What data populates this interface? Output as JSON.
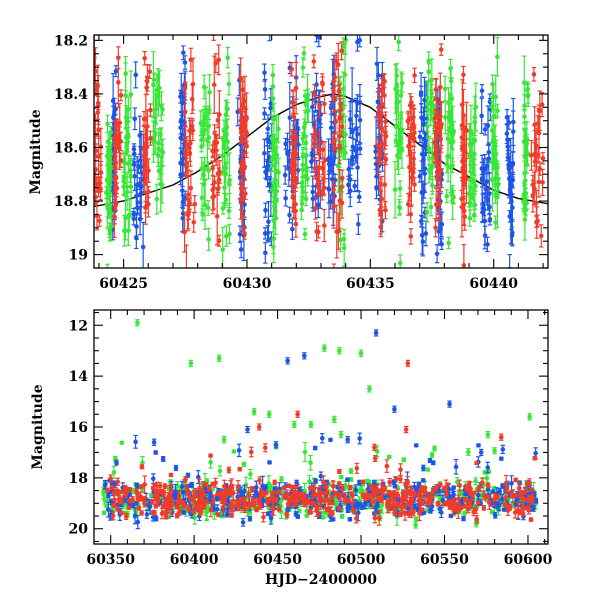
{
  "colors": {
    "blue": "#1f55e6",
    "green": "#39e639",
    "red": "#f03c2a",
    "model": "#000000",
    "frame": "#000000"
  },
  "chart_data": [
    {
      "type": "scatter",
      "panel": "top",
      "xlabel": "",
      "ylabel": "Magnitude",
      "xlim": [
        60423.8,
        60442.2
      ],
      "ylim": [
        19.05,
        18.18
      ],
      "y_inverted": true,
      "x_ticks": [
        60425,
        60430,
        60435,
        60440
      ],
      "y_ticks": [
        18.2,
        18.4,
        18.6,
        18.8,
        19
      ],
      "y_tick_labels": [
        "18.2",
        "18.4",
        "18.6",
        "18.8",
        "19"
      ],
      "model_curve": {
        "name": "",
        "x": [
          60423.8,
          60425,
          60426,
          60427,
          60428,
          60429,
          60430,
          60431,
          60432,
          60433,
          60433.5,
          60434,
          60435,
          60436,
          60437,
          60438,
          60439,
          60440,
          60441,
          60442.2
        ],
        "y": [
          18.82,
          18.8,
          18.77,
          18.74,
          18.69,
          18.63,
          18.56,
          18.49,
          18.44,
          18.41,
          18.4,
          18.41,
          18.45,
          18.52,
          18.59,
          18.66,
          18.71,
          18.76,
          18.79,
          18.81
        ]
      },
      "series": [
        {
          "color": "blue",
          "segments": [
            [
              60424.5,
              60424.7
            ],
            [
              60425.4,
              60425.8
            ],
            [
              60427.3,
              60427.5
            ],
            [
              60429.6,
              60429.9
            ],
            [
              60430.7,
              60431.0
            ],
            [
              60431.5,
              60432.1
            ],
            [
              60432.6,
              60433.0
            ],
            [
              60433.3,
              60433.6
            ],
            [
              60434.1,
              60434.6
            ],
            [
              60435.2,
              60435.5
            ],
            [
              60437.0,
              60437.3
            ],
            [
              60437.7,
              60437.9
            ],
            [
              60439.5,
              60439.9
            ],
            [
              60440.5,
              60440.8
            ]
          ]
        },
        {
          "color": "green",
          "segments": [
            [
              60424.3,
              60424.5
            ],
            [
              60425.0,
              60425.3
            ],
            [
              60426.2,
              60426.6
            ],
            [
              60428.1,
              60428.5
            ],
            [
              60429.0,
              60429.3
            ],
            [
              60431.0,
              60431.3
            ],
            [
              60432.2,
              60432.5
            ],
            [
              60433.7,
              60434.0
            ],
            [
              60436.0,
              60436.3
            ],
            [
              60437.3,
              60437.6
            ],
            [
              60438.0,
              60438.4
            ],
            [
              60439.0,
              60439.3
            ],
            [
              60439.9,
              60440.2
            ],
            [
              60441.2,
              60441.4
            ]
          ]
        },
        {
          "color": "red",
          "segments": [
            [
              60423.8,
              60424.1
            ],
            [
              60424.6,
              60424.9
            ],
            [
              60425.8,
              60426.1
            ],
            [
              60427.4,
              60427.9
            ],
            [
              60428.6,
              60428.9
            ],
            [
              60429.7,
              60430.0
            ],
            [
              60431.8,
              60432.0
            ],
            [
              60432.7,
              60433.2
            ],
            [
              60433.5,
              60433.9
            ],
            [
              60435.3,
              60435.7
            ],
            [
              60436.5,
              60436.8
            ],
            [
              60437.6,
              60437.9
            ],
            [
              60438.7,
              60438.9
            ],
            [
              60441.5,
              60442.0
            ]
          ]
        }
      ]
    },
    {
      "type": "scatter",
      "panel": "bottom",
      "xlabel": "HJD−2400000",
      "ylabel": "Magnitude",
      "xlim": [
        60340,
        60612
      ],
      "ylim": [
        20.6,
        11.4
      ],
      "y_inverted": true,
      "x_ticks": [
        60350,
        60400,
        60450,
        60500,
        60550,
        60600
      ],
      "y_ticks": [
        12,
        14,
        16,
        18,
        20
      ],
      "baseline": {
        "mean": 18.85,
        "scatter": 0.35
      },
      "outliers": [
        {
          "color": "green",
          "x": 60366,
          "y": 11.9
        },
        {
          "color": "green",
          "x": 60398,
          "y": 13.5
        },
        {
          "color": "green",
          "x": 60415,
          "y": 13.3
        },
        {
          "color": "green",
          "x": 60478,
          "y": 12.9
        },
        {
          "color": "green",
          "x": 60487,
          "y": 13.0
        },
        {
          "color": "green",
          "x": 60500,
          "y": 13.1
        },
        {
          "color": "green",
          "x": 60505,
          "y": 14.5
        },
        {
          "color": "green",
          "x": 60436,
          "y": 15.4
        },
        {
          "color": "green",
          "x": 60445,
          "y": 15.5
        },
        {
          "color": "green",
          "x": 60460,
          "y": 15.9
        },
        {
          "color": "green",
          "x": 60470,
          "y": 15.9
        },
        {
          "color": "green",
          "x": 60484,
          "y": 15.7
        },
        {
          "color": "green",
          "x": 60488,
          "y": 16.3
        },
        {
          "color": "green",
          "x": 60418,
          "y": 16.5
        },
        {
          "color": "green",
          "x": 60576,
          "y": 16.3
        },
        {
          "color": "green",
          "x": 60601,
          "y": 15.6
        },
        {
          "color": "blue",
          "x": 60456,
          "y": 13.4
        },
        {
          "color": "blue",
          "x": 60466,
          "y": 13.2
        },
        {
          "color": "blue",
          "x": 60509,
          "y": 12.3
        },
        {
          "color": "blue",
          "x": 60520,
          "y": 15.3
        },
        {
          "color": "blue",
          "x": 60553,
          "y": 15.1
        },
        {
          "color": "blue",
          "x": 60449,
          "y": 16.7
        },
        {
          "color": "blue",
          "x": 60432,
          "y": 16.1
        },
        {
          "color": "blue",
          "x": 60492,
          "y": 16.5
        },
        {
          "color": "blue",
          "x": 60572,
          "y": 17.0
        },
        {
          "color": "blue",
          "x": 60376,
          "y": 16.6
        },
        {
          "color": "red",
          "x": 60528,
          "y": 13.5
        },
        {
          "color": "red",
          "x": 60527,
          "y": 16.1
        },
        {
          "color": "red",
          "x": 60462,
          "y": 15.5
        },
        {
          "color": "red",
          "x": 60439,
          "y": 16.0
        },
        {
          "color": "red",
          "x": 60584,
          "y": 16.4
        },
        {
          "color": "red",
          "x": 60508,
          "y": 16.8
        }
      ]
    }
  ]
}
